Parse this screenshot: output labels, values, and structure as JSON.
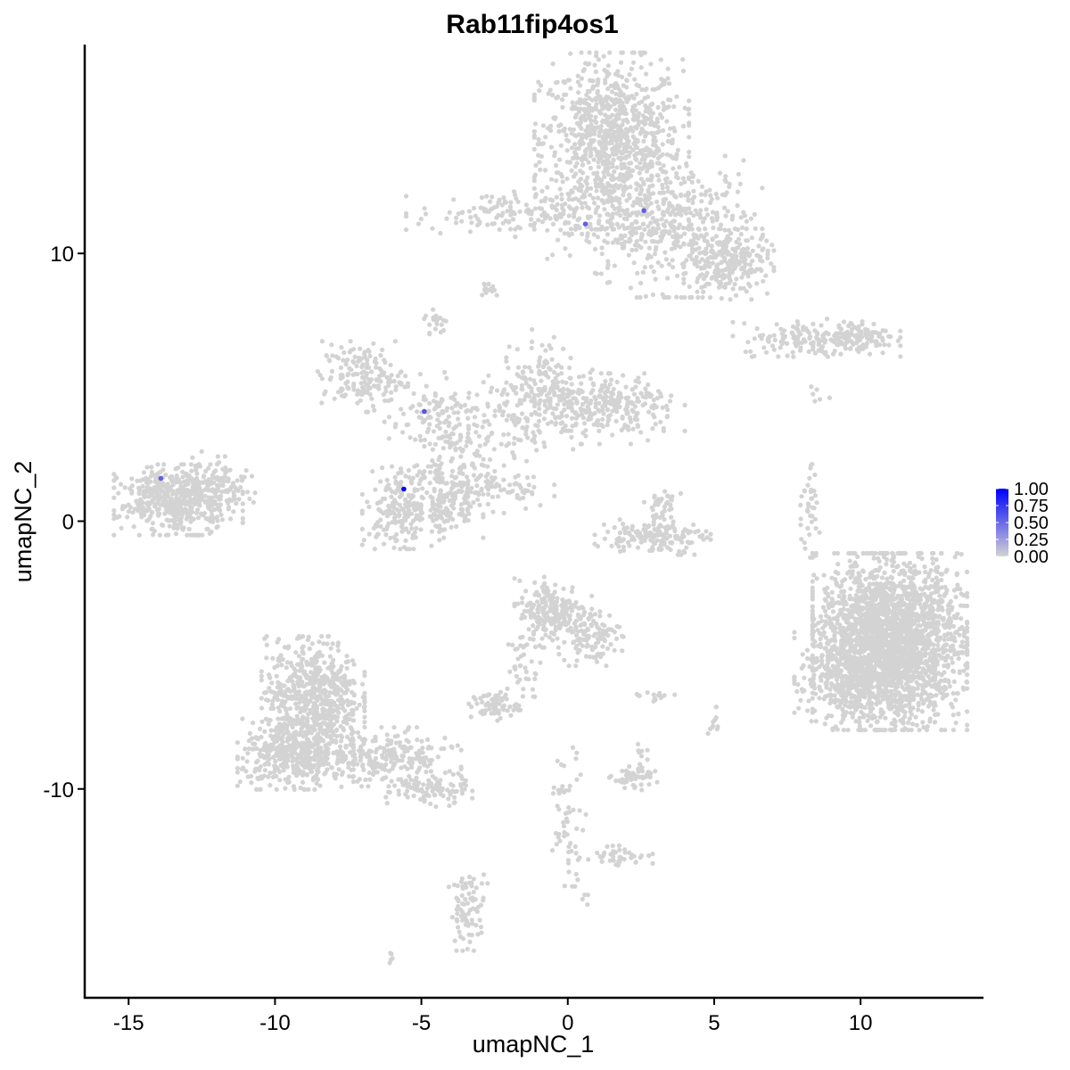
{
  "chart_data": {
    "type": "scatter",
    "title": "Rab11fip4os1",
    "xlabel": "umapNC_1",
    "ylabel": "umapNC_2",
    "xlim": [
      -16.5,
      14.2
    ],
    "ylim": [
      -17.8,
      17.8
    ],
    "x_ticks": [
      -15,
      -10,
      -5,
      0,
      5,
      10
    ],
    "y_ticks": [
      -10,
      0,
      10
    ],
    "x_tick_labels": [
      "-15",
      "-10",
      "-5",
      "0",
      "5",
      "10"
    ],
    "y_tick_labels": [
      "-10",
      "0",
      "10"
    ],
    "grid": false,
    "legend": {
      "placement": "right",
      "type": "colorbar",
      "ticks": [
        1.0,
        0.75,
        0.5,
        0.25,
        0.0
      ],
      "tick_labels": [
        "1.00",
        "0.75",
        "0.50",
        "0.25",
        "0.00"
      ],
      "low_color": "#d3d3d3",
      "high_color": "#0000ff"
    },
    "point_color_low": "#d3d3d3",
    "point_color_high": "#0000ff",
    "clusters": [
      {
        "cx": 1.5,
        "cy": 14.2,
        "sx": 1.2,
        "sy": 1.5,
        "n": 900
      },
      {
        "cx": 4.0,
        "cy": 11.0,
        "sx": 1.2,
        "sy": 1.2,
        "n": 350
      },
      {
        "cx": 5.5,
        "cy": 9.6,
        "sx": 0.7,
        "sy": 0.6,
        "n": 200
      },
      {
        "cx": -2.0,
        "cy": 11.5,
        "sx": 1.6,
        "sy": 0.4,
        "n": 150
      },
      {
        "cx": 1.5,
        "cy": 11.0,
        "sx": 1.0,
        "sy": 0.8,
        "n": 120
      },
      {
        "cx": -2.7,
        "cy": 8.7,
        "sx": 0.2,
        "sy": 0.15,
        "n": 15
      },
      {
        "cx": -4.5,
        "cy": 7.4,
        "sx": 0.2,
        "sy": 0.3,
        "n": 20
      },
      {
        "cx": 8.5,
        "cy": 6.8,
        "sx": 1.3,
        "sy": 0.3,
        "n": 150
      },
      {
        "cx": 9.7,
        "cy": 6.9,
        "sx": 0.6,
        "sy": 0.3,
        "n": 90
      },
      {
        "cx": -7.0,
        "cy": 5.4,
        "sx": 0.7,
        "sy": 0.6,
        "n": 170
      },
      {
        "cx": -4.5,
        "cy": 3.8,
        "sx": 0.8,
        "sy": 0.8,
        "n": 130
      },
      {
        "cx": -3.5,
        "cy": 2.0,
        "sx": 0.6,
        "sy": 1.0,
        "n": 90
      },
      {
        "cx": -1.5,
        "cy": 4.0,
        "sx": 1.0,
        "sy": 0.8,
        "n": 110
      },
      {
        "cx": -1.0,
        "cy": 5.4,
        "sx": 0.5,
        "sy": 0.8,
        "n": 90
      },
      {
        "cx": 0.0,
        "cy": 4.5,
        "sx": 1.0,
        "sy": 0.6,
        "n": 120
      },
      {
        "cx": 1.8,
        "cy": 4.2,
        "sx": 1.0,
        "sy": 0.6,
        "n": 200
      },
      {
        "cx": -2.0,
        "cy": 1.2,
        "sx": 0.7,
        "sy": 0.4,
        "n": 50
      },
      {
        "cx": -5.7,
        "cy": 0.5,
        "sx": 0.6,
        "sy": 0.7,
        "n": 200
      },
      {
        "cx": -4.1,
        "cy": 0.7,
        "sx": 0.55,
        "sy": 0.6,
        "n": 150
      },
      {
        "cx": -13.3,
        "cy": 0.8,
        "sx": 1.0,
        "sy": 0.6,
        "n": 500
      },
      {
        "cx": -12.0,
        "cy": 1.5,
        "sx": 0.6,
        "sy": 0.5,
        "n": 80
      },
      {
        "cx": 2.9,
        "cy": -0.6,
        "sx": 0.9,
        "sy": 0.3,
        "n": 150
      },
      {
        "cx": 3.2,
        "cy": 0.5,
        "sx": 0.3,
        "sy": 0.4,
        "n": 40
      },
      {
        "cx": 8.2,
        "cy": 0.4,
        "sx": 0.2,
        "sy": 0.8,
        "n": 40
      },
      {
        "cx": 11.0,
        "cy": -4.5,
        "sx": 1.2,
        "sy": 1.5,
        "n": 2500
      },
      {
        "cx": 9.5,
        "cy": -5.8,
        "sx": 0.8,
        "sy": 0.9,
        "n": 300
      },
      {
        "cx": -0.5,
        "cy": -3.4,
        "sx": 0.6,
        "sy": 0.6,
        "n": 220
      },
      {
        "cx": 0.8,
        "cy": -4.3,
        "sx": 0.5,
        "sy": 0.5,
        "n": 100
      },
      {
        "cx": -1.5,
        "cy": -5.5,
        "sx": 0.3,
        "sy": 0.7,
        "n": 35
      },
      {
        "cx": -2.5,
        "cy": -6.9,
        "sx": 0.4,
        "sy": 0.25,
        "n": 70
      },
      {
        "cx": -8.7,
        "cy": -6.5,
        "sx": 0.8,
        "sy": 1.0,
        "n": 600
      },
      {
        "cx": -9.3,
        "cy": -8.7,
        "sx": 0.9,
        "sy": 0.6,
        "n": 450
      },
      {
        "cx": -6.5,
        "cy": -8.8,
        "sx": 1.3,
        "sy": 0.5,
        "n": 250
      },
      {
        "cx": -4.8,
        "cy": -10.0,
        "sx": 0.7,
        "sy": 0.3,
        "n": 100
      },
      {
        "cx": 2.3,
        "cy": -9.6,
        "sx": 0.4,
        "sy": 0.2,
        "n": 50
      },
      {
        "cx": 2.5,
        "cy": -8.7,
        "sx": 0.1,
        "sy": 0.3,
        "n": 10
      },
      {
        "cx": 3.0,
        "cy": -6.6,
        "sx": 0.3,
        "sy": 0.1,
        "n": 15
      },
      {
        "cx": 5.0,
        "cy": -7.6,
        "sx": 0.1,
        "sy": 0.3,
        "n": 12
      },
      {
        "cx": 0.0,
        "cy": -11.0,
        "sx": 0.3,
        "sy": 1.2,
        "n": 60
      },
      {
        "cx": 1.8,
        "cy": -12.5,
        "sx": 0.5,
        "sy": 0.2,
        "n": 40
      },
      {
        "cx": -3.4,
        "cy": -14.5,
        "sx": 0.3,
        "sy": 0.7,
        "n": 80
      },
      {
        "cx": -6.0,
        "cy": -16.3,
        "sx": 0.1,
        "sy": 0.1,
        "n": 5
      },
      {
        "cx": 0.6,
        "cy": -14.1,
        "sx": 0.1,
        "sy": 0.1,
        "n": 4
      },
      {
        "cx": 8.6,
        "cy": 4.8,
        "sx": 0.3,
        "sy": 0.2,
        "n": 6
      }
    ],
    "expressed_points": [
      {
        "x": -5.6,
        "y": 1.2,
        "value": 1.0
      },
      {
        "x": -4.9,
        "y": 4.1,
        "value": 0.6
      },
      {
        "x": -13.9,
        "y": 1.6,
        "value": 0.55
      },
      {
        "x": 0.6,
        "y": 11.1,
        "value": 0.55
      },
      {
        "x": 2.6,
        "y": 11.6,
        "value": 0.55
      }
    ]
  }
}
